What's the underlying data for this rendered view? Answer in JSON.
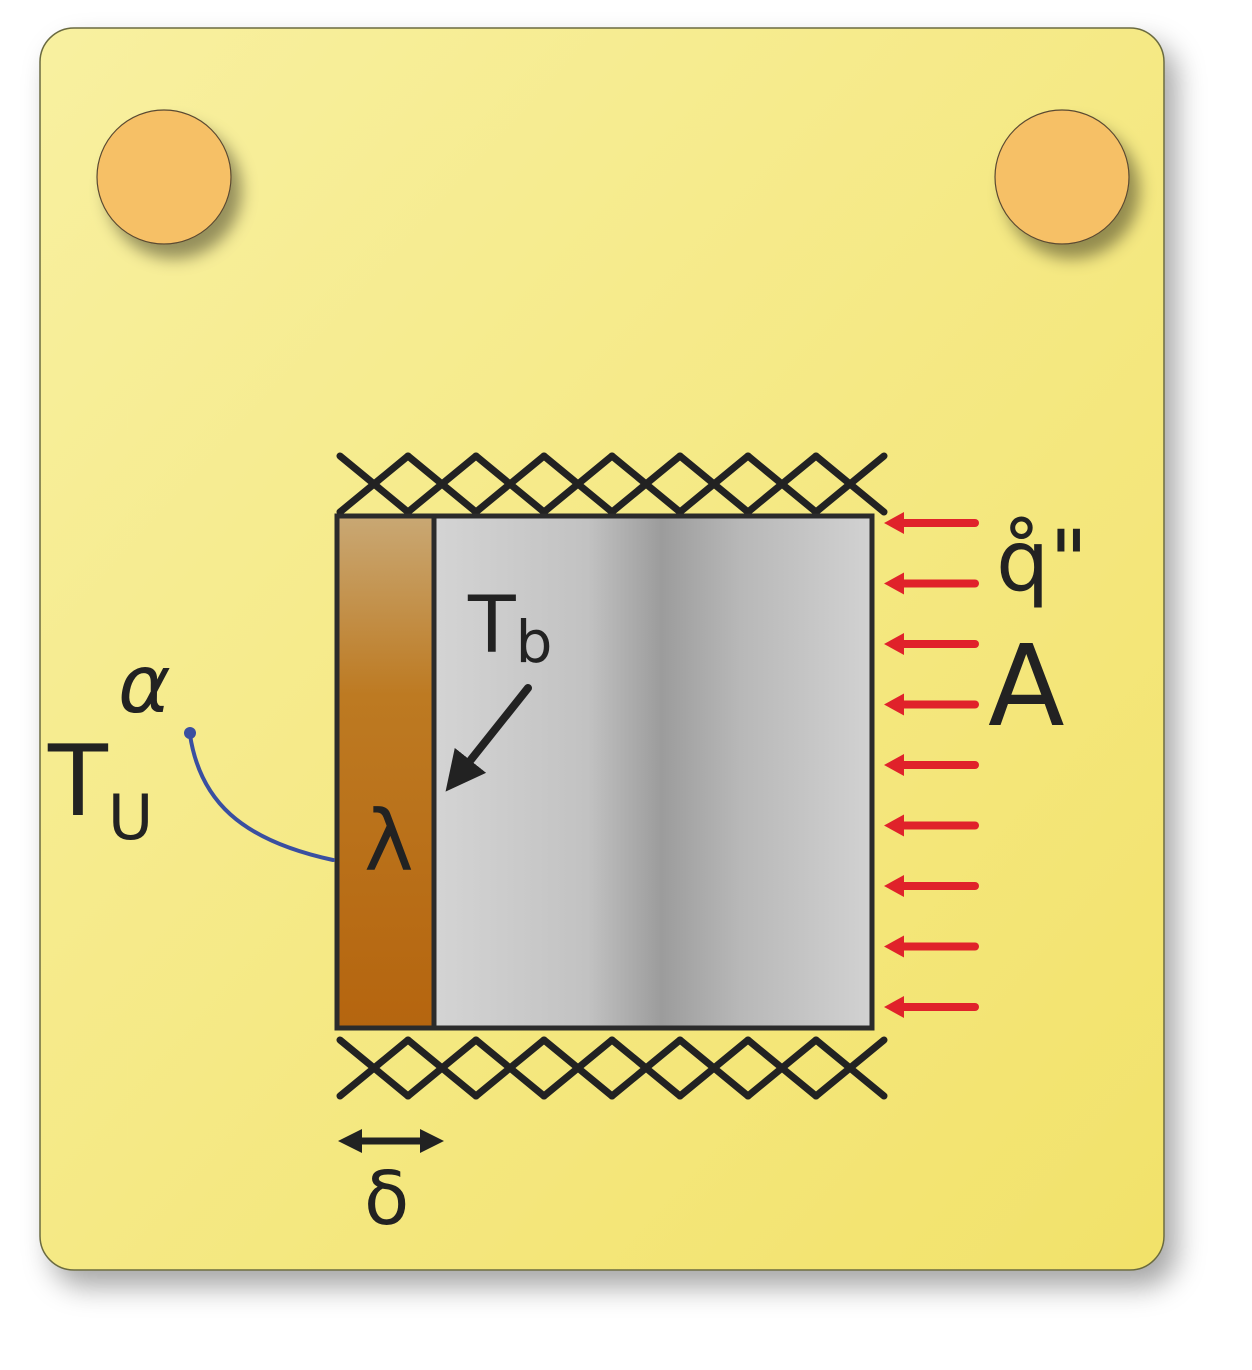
{
  "labels": {
    "t_b": "T",
    "t_b_sub": "b",
    "t_u": "T",
    "t_u_sub": "U",
    "alpha": "α",
    "lambda": "λ",
    "delta": "δ",
    "q_dot": "q̊\"",
    "area": "A"
  },
  "colors": {
    "card_light": "#f8f0a0",
    "card_dark": "#f2e26a",
    "pin": "#f6c066",
    "insulation_top": "#c9a874",
    "insulation_bottom": "#b5650f",
    "metal_light": "#d6d6d6",
    "metal_mid": "#9a9a9a",
    "outline": "#2b2b2b",
    "arrow_red": "#e0222a",
    "lead_blue": "#3a4fa0"
  },
  "heat_flux_arrow_count": 9,
  "hatch_cross_count": 8
}
